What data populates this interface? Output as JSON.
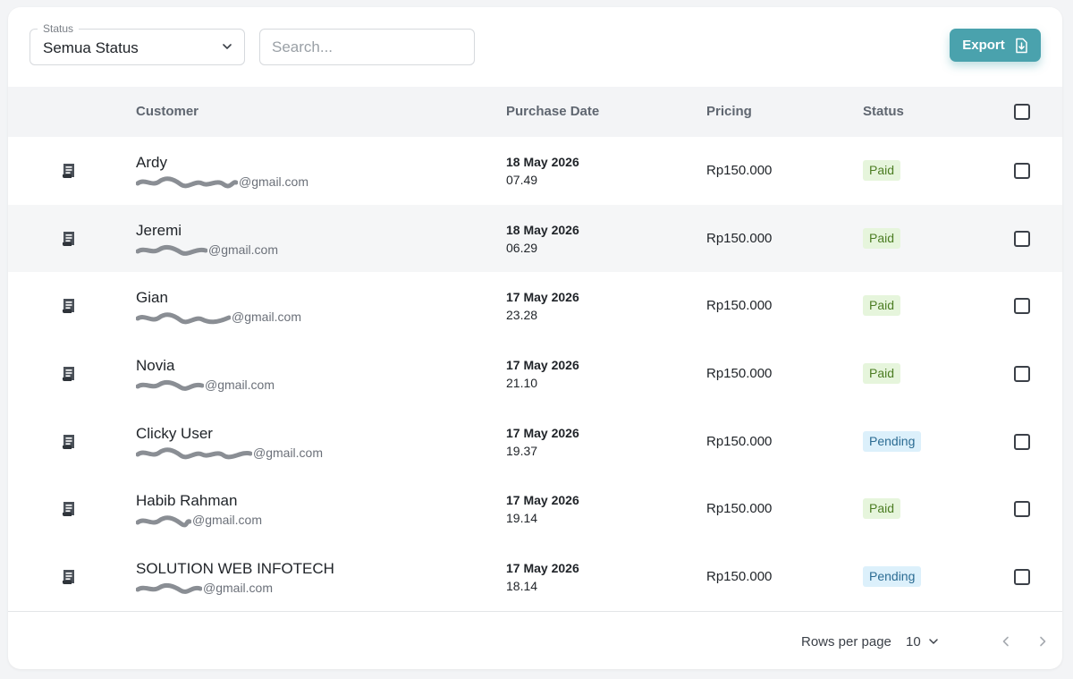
{
  "toolbar": {
    "status_label": "Status",
    "status_value": "Semua Status",
    "search_placeholder": "Search...",
    "export_label": "Export"
  },
  "table": {
    "columns": {
      "customer": "Customer",
      "purchase_date": "Purchase Date",
      "pricing": "Pricing",
      "status": "Status"
    },
    "rows": [
      {
        "name": "Ardy",
        "email_visible": "@gmail.com",
        "date": "18 May 2026",
        "time": "07.49",
        "price": "Rp150.000",
        "status": "Paid"
      },
      {
        "name": "Jeremi",
        "email_visible": "@gmail.com",
        "date": "18 May 2026",
        "time": "06.29",
        "price": "Rp150.000",
        "status": "Paid"
      },
      {
        "name": "Gian",
        "email_visible": "@gmail.com",
        "date": "17 May 2026",
        "time": "23.28",
        "price": "Rp150.000",
        "status": "Paid"
      },
      {
        "name": "Novia",
        "email_visible": "@gmail.com",
        "date": "17 May 2026",
        "time": "21.10",
        "price": "Rp150.000",
        "status": "Paid"
      },
      {
        "name": "Clicky User",
        "email_visible": "@gmail.com",
        "date": "17 May 2026",
        "time": "19.37",
        "price": "Rp150.000",
        "status": "Pending"
      },
      {
        "name": "Habib Rahman",
        "email_visible": "@gmail.com",
        "date": "17 May 2026",
        "time": "19.14",
        "price": "Rp150.000",
        "status": "Paid"
      },
      {
        "name": "SOLUTION WEB INFOTECH",
        "email_visible": "@gmail.com",
        "date": "17 May 2026",
        "time": "18.14",
        "price": "Rp150.000",
        "status": "Pending"
      }
    ]
  },
  "footer": {
    "rows_per_page_label": "Rows per page",
    "rows_per_page_value": "10"
  },
  "colors": {
    "accent": "#4aa2ad",
    "paid_bg": "#e6f5dc",
    "paid_text": "#4c7d23",
    "pending_bg": "#dcf0fb",
    "pending_text": "#2c6c93"
  },
  "icons": {
    "row": "receipt-icon",
    "export": "file-export-icon",
    "select": "chevron-down-icon",
    "prev": "chevron-left-icon",
    "next": "chevron-right-icon"
  }
}
